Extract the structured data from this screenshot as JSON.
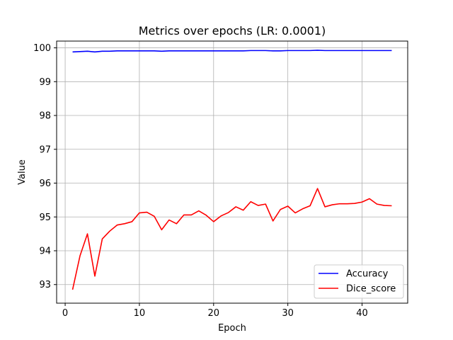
{
  "chart_data": {
    "type": "line",
    "title": "Metrics over epochs (LR: 0.0001)",
    "xlabel": "Epoch",
    "ylabel": "Value",
    "xlim": [
      -1.15,
      46.15
    ],
    "ylim": [
      92.45,
      100.2
    ],
    "xticks": [
      0,
      10,
      20,
      30,
      40
    ],
    "yticks": [
      93,
      94,
      95,
      96,
      97,
      98,
      99,
      100
    ],
    "grid": true,
    "legend_position": "lower-right",
    "x": [
      1,
      2,
      3,
      4,
      5,
      6,
      7,
      8,
      9,
      10,
      11,
      12,
      13,
      14,
      15,
      16,
      17,
      18,
      19,
      20,
      21,
      22,
      23,
      24,
      25,
      26,
      27,
      28,
      29,
      30,
      31,
      32,
      33,
      34,
      35,
      36,
      37,
      38,
      39,
      40,
      41,
      42,
      43,
      44
    ],
    "series": [
      {
        "name": "Accuracy",
        "color": "#0000ff",
        "values": [
          99.88,
          99.89,
          99.9,
          99.88,
          99.9,
          99.9,
          99.91,
          99.91,
          99.91,
          99.91,
          99.91,
          99.91,
          99.9,
          99.91,
          99.91,
          99.91,
          99.91,
          99.91,
          99.91,
          99.91,
          99.91,
          99.91,
          99.91,
          99.91,
          99.92,
          99.92,
          99.92,
          99.91,
          99.91,
          99.92,
          99.92,
          99.92,
          99.92,
          99.93,
          99.92,
          99.92,
          99.92,
          99.92,
          99.92,
          99.92,
          99.92,
          99.92,
          99.92,
          99.92
        ]
      },
      {
        "name": "Dice_score",
        "color": "#ff0000",
        "values": [
          92.85,
          93.85,
          94.5,
          93.25,
          94.35,
          94.58,
          94.76,
          94.8,
          94.86,
          95.12,
          95.14,
          95.02,
          94.62,
          94.91,
          94.8,
          95.06,
          95.06,
          95.18,
          95.05,
          94.86,
          95.03,
          95.13,
          95.3,
          95.2,
          95.45,
          95.34,
          95.38,
          94.88,
          95.22,
          95.32,
          95.12,
          95.24,
          95.33,
          95.84,
          95.3,
          95.36,
          95.39,
          95.39,
          95.4,
          95.44,
          95.54,
          95.38,
          95.34,
          95.33
        ]
      }
    ]
  }
}
